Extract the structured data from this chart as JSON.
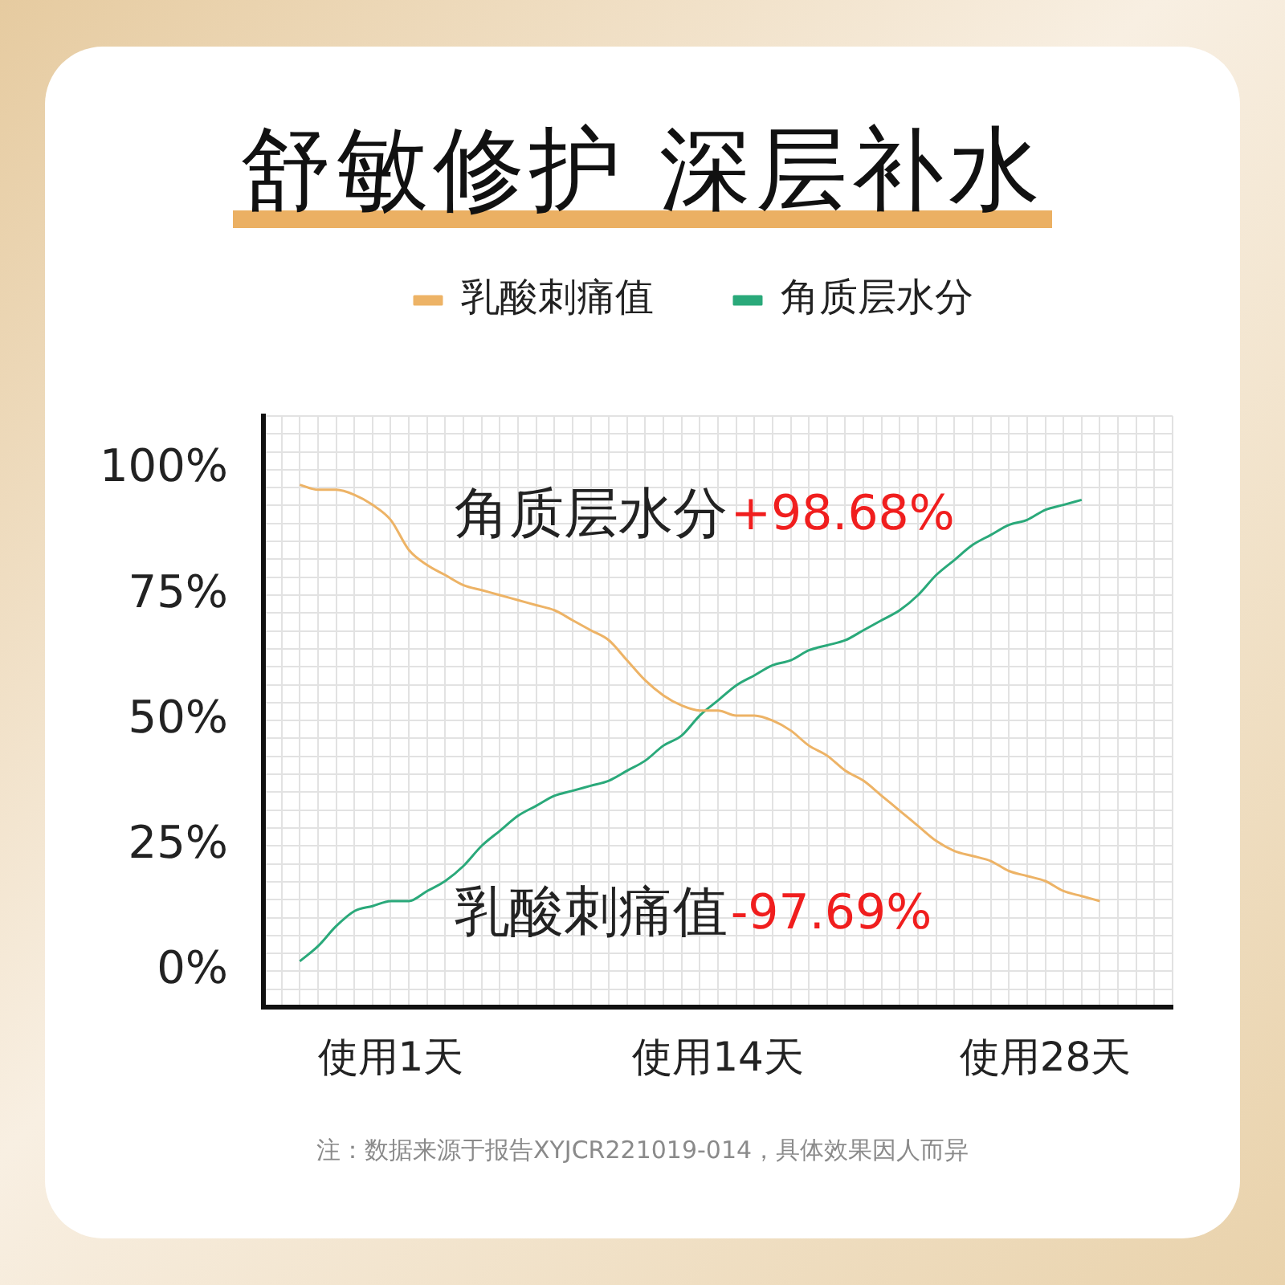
{
  "chart_data": {
    "type": "line",
    "title": "舒敏修护 深层补水",
    "categories": [
      null,
      null,
      null,
      null,
      null,
      null,
      null,
      "使用1天",
      null,
      null,
      null,
      null,
      null,
      null,
      null,
      null,
      null,
      null,
      null,
      null,
      null,
      null,
      null,
      null,
      null,
      "使用14天",
      null,
      null,
      null,
      null,
      null,
      null,
      null,
      null,
      null,
      null,
      null,
      null,
      null,
      null,
      null,
      null,
      null,
      "使用28天",
      null,
      null,
      null,
      null,
      null,
      null,
      null
    ],
    "series": [
      {
        "name": "乳酸刺痛值",
        "color": "#edb366",
        "values": [
          null,
          null,
          97,
          96,
          96,
          95,
          93,
          90,
          84,
          81,
          79,
          77,
          76,
          75,
          74,
          73,
          72,
          70,
          68,
          66,
          62,
          58,
          55,
          53,
          52,
          52,
          51,
          51,
          50,
          48,
          45,
          43,
          40,
          38,
          35,
          32,
          29,
          26,
          24,
          23,
          22,
          20,
          19,
          18,
          16,
          15,
          14,
          null,
          null,
          null,
          null
        ]
      },
      {
        "name": "角质层水分",
        "color": "#2aa97a",
        "values": [
          null,
          null,
          2,
          5,
          9,
          12,
          13,
          14,
          14,
          16,
          18,
          21,
          25,
          28,
          31,
          33,
          35,
          36,
          37,
          38,
          40,
          42,
          45,
          47,
          51,
          54,
          57,
          59,
          61,
          62,
          64,
          65,
          66,
          68,
          70,
          72,
          75,
          79,
          82,
          85,
          87,
          89,
          90,
          92,
          93,
          94,
          null,
          null,
          null,
          null,
          null
        ]
      }
    ],
    "ylim": [
      -7.14,
      110.71
    ],
    "yticks": [
      {
        "value": -7.14,
        "label": null
      },
      {
        "value": -3.57,
        "label": null
      },
      {
        "value": 0,
        "label": "0%"
      },
      {
        "value": 3.57,
        "label": null
      },
      {
        "value": 7.14,
        "label": null
      },
      {
        "value": 10.71,
        "label": null
      },
      {
        "value": 14.29,
        "label": null
      },
      {
        "value": 17.86,
        "label": null
      },
      {
        "value": 21.43,
        "label": null
      },
      {
        "value": 25,
        "label": "25%"
      },
      {
        "value": 28.57,
        "label": null
      },
      {
        "value": 32.14,
        "label": null
      },
      {
        "value": 35.71,
        "label": null
      },
      {
        "value": 39.29,
        "label": null
      },
      {
        "value": 42.86,
        "label": null
      },
      {
        "value": 46.43,
        "label": null
      },
      {
        "value": 50,
        "label": "50%"
      },
      {
        "value": 53.57,
        "label": null
      },
      {
        "value": 57.14,
        "label": null
      },
      {
        "value": 60.71,
        "label": null
      },
      {
        "value": 64.29,
        "label": null
      },
      {
        "value": 67.86,
        "label": null
      },
      {
        "value": 71.43,
        "label": null
      },
      {
        "value": 75,
        "label": "75%"
      },
      {
        "value": 78.57,
        "label": null
      },
      {
        "value": 82.14,
        "label": null
      },
      {
        "value": 85.71,
        "label": null
      },
      {
        "value": 89.29,
        "label": null
      },
      {
        "value": 92.86,
        "label": null
      },
      {
        "value": 96.43,
        "label": null
      },
      {
        "value": 100,
        "label": "100%"
      },
      {
        "value": 103.57,
        "label": null
      },
      {
        "value": 107.14,
        "label": null
      },
      {
        "value": 110.71,
        "label": null
      }
    ],
    "grid": true,
    "legend": "top",
    "annotations": [
      "角质层水分",
      "+98.68%",
      "乳酸刺痛值",
      "-97.69%",
      "注：数据来源于报告XYJCR221019-014，具体效果因人而异"
    ]
  }
}
